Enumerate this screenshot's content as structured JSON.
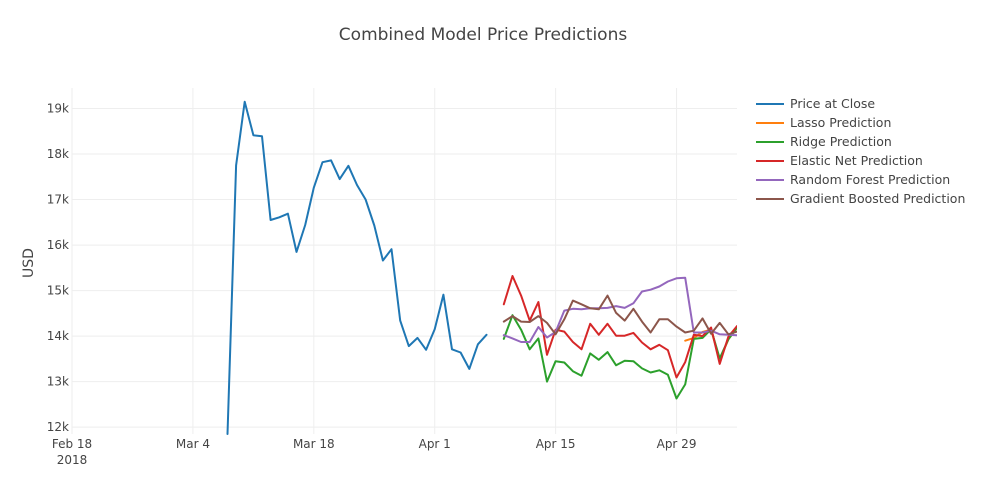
{
  "chart_data": {
    "type": "line",
    "title": "Combined Model Price Predictions",
    "xlabel": "",
    "ylabel": "USD",
    "x_ticks": [
      {
        "date": "2018-02-18",
        "label": "Feb 18",
        "sublabel": "2018"
      },
      {
        "date": "2018-03-04",
        "label": "Mar 4"
      },
      {
        "date": "2018-03-18",
        "label": "Mar 18"
      },
      {
        "date": "2018-04-01",
        "label": "Apr 1"
      },
      {
        "date": "2018-04-15",
        "label": "Apr 15"
      },
      {
        "date": "2018-04-29",
        "label": "Apr 29"
      }
    ],
    "y_ticks": [
      {
        "value": 12000,
        "label": "12k"
      },
      {
        "value": 13000,
        "label": "13k"
      },
      {
        "value": 14000,
        "label": "14k"
      },
      {
        "value": 15000,
        "label": "15k"
      },
      {
        "value": 16000,
        "label": "16k"
      },
      {
        "value": 17000,
        "label": "17k"
      },
      {
        "value": 18000,
        "label": "18k"
      },
      {
        "value": 19000,
        "label": "19k"
      }
    ],
    "xlim": [
      "2018-02-18",
      "2018-05-06"
    ],
    "ylim": [
      11850,
      19450
    ],
    "grid": true,
    "legend_position": "top-right",
    "series": [
      {
        "name": "Price at Close",
        "color": "#1f77b4",
        "x": [
          "2018-03-08",
          "2018-03-09",
          "2018-03-10",
          "2018-03-11",
          "2018-03-12",
          "2018-03-13",
          "2018-03-14",
          "2018-03-15",
          "2018-03-16",
          "2018-03-17",
          "2018-03-18",
          "2018-03-19",
          "2018-03-20",
          "2018-03-21",
          "2018-03-22",
          "2018-03-23",
          "2018-03-24",
          "2018-03-25",
          "2018-03-26",
          "2018-03-27",
          "2018-03-28",
          "2018-03-29",
          "2018-03-30",
          "2018-03-31",
          "2018-04-01",
          "2018-04-02",
          "2018-04-03",
          "2018-04-04",
          "2018-04-05",
          "2018-04-06",
          "2018-04-07",
          "2018-04-08"
        ],
        "values": [
          11850,
          17750,
          19150,
          18410,
          18390,
          16550,
          16610,
          16690,
          15850,
          16440,
          17260,
          17820,
          17860,
          17450,
          17740,
          17320,
          17000,
          16430,
          15660,
          15910,
          14340,
          13780,
          13960,
          13700,
          14150,
          14910,
          13710,
          13640,
          13280,
          13820,
          14030,
          null
        ]
      },
      {
        "name": "Lasso Prediction",
        "color": "#ff7f0e",
        "x": [
          "2018-04-30",
          "2018-05-01",
          "2018-05-02",
          "2018-05-03",
          "2018-05-04",
          "2018-05-05",
          "2018-05-06"
        ],
        "values": [
          13900,
          13960,
          14090,
          14140,
          13480,
          13930,
          14180
        ]
      },
      {
        "name": "Ridge Prediction",
        "color": "#2ca02c",
        "x": [
          "2018-04-09",
          "2018-04-10",
          "2018-04-11",
          "2018-04-12",
          "2018-04-13",
          "2018-04-14",
          "2018-04-15",
          "2018-04-16",
          "2018-04-17",
          "2018-04-18",
          "2018-04-19",
          "2018-04-20",
          "2018-04-21",
          "2018-04-22",
          "2018-04-23",
          "2018-04-24",
          "2018-04-25",
          "2018-04-26",
          "2018-04-27",
          "2018-04-28",
          "2018-04-29",
          "2018-04-30",
          "2018-05-01",
          "2018-05-02",
          "2018-05-03",
          "2018-05-04",
          "2018-05-05",
          "2018-05-06"
        ],
        "values": [
          13940,
          14460,
          14140,
          13710,
          13950,
          13000,
          13450,
          13420,
          13230,
          13130,
          13620,
          13480,
          13650,
          13360,
          13460,
          13450,
          13290,
          13200,
          13250,
          13150,
          12630,
          12940,
          13940,
          13960,
          14150,
          13510,
          13930,
          14190
        ]
      },
      {
        "name": "Elastic Net Prediction",
        "color": "#d62728",
        "x": [
          "2018-04-09",
          "2018-04-10",
          "2018-04-11",
          "2018-04-12",
          "2018-04-13",
          "2018-04-14",
          "2018-04-15",
          "2018-04-16",
          "2018-04-17",
          "2018-04-18",
          "2018-04-19",
          "2018-04-20",
          "2018-04-21",
          "2018-04-22",
          "2018-04-23",
          "2018-04-24",
          "2018-04-25",
          "2018-04-26",
          "2018-04-27",
          "2018-04-28",
          "2018-04-29",
          "2018-04-30",
          "2018-05-01",
          "2018-05-02",
          "2018-05-03",
          "2018-05-04",
          "2018-05-05",
          "2018-05-06"
        ],
        "values": [
          14700,
          15320,
          14890,
          14340,
          14750,
          13590,
          14140,
          14100,
          13870,
          13710,
          14270,
          14030,
          14270,
          14010,
          14010,
          14070,
          13860,
          13710,
          13810,
          13690,
          13090,
          13430,
          14030,
          14000,
          14190,
          13390,
          13990,
          14220
        ]
      },
      {
        "name": "Random Forest Prediction",
        "color": "#9467bd",
        "x": [
          "2018-04-09",
          "2018-04-10",
          "2018-04-11",
          "2018-04-12",
          "2018-04-13",
          "2018-04-14",
          "2018-04-15",
          "2018-04-16",
          "2018-04-17",
          "2018-04-18",
          "2018-04-19",
          "2018-04-20",
          "2018-04-21",
          "2018-04-22",
          "2018-04-23",
          "2018-04-24",
          "2018-04-25",
          "2018-04-26",
          "2018-04-27",
          "2018-04-28",
          "2018-04-29",
          "2018-04-30",
          "2018-05-01",
          "2018-05-02",
          "2018-05-03",
          "2018-05-04",
          "2018-05-05",
          "2018-05-06"
        ],
        "values": [
          14020,
          13950,
          13870,
          13870,
          14200,
          13970,
          14090,
          14560,
          14600,
          14590,
          14610,
          14610,
          14620,
          14660,
          14620,
          14720,
          14980,
          15020,
          15090,
          15200,
          15270,
          15280,
          14080,
          14080,
          14120,
          14040,
          14030,
          14020
        ]
      },
      {
        "name": "Gradient Boosted Prediction",
        "color": "#8c564b",
        "x": [
          "2018-04-09",
          "2018-04-10",
          "2018-04-11",
          "2018-04-12",
          "2018-04-13",
          "2018-04-14",
          "2018-04-15",
          "2018-04-16",
          "2018-04-17",
          "2018-04-18",
          "2018-04-19",
          "2018-04-20",
          "2018-04-21",
          "2018-04-22",
          "2018-04-23",
          "2018-04-24",
          "2018-04-25",
          "2018-04-26",
          "2018-04-27",
          "2018-04-28",
          "2018-04-29",
          "2018-04-30",
          "2018-05-01",
          "2018-05-02",
          "2018-05-03",
          "2018-05-04",
          "2018-05-05",
          "2018-05-06"
        ],
        "values": [
          14320,
          14440,
          14320,
          14310,
          14440,
          14290,
          14040,
          14370,
          14780,
          14700,
          14610,
          14590,
          14890,
          14510,
          14340,
          14600,
          14320,
          14080,
          14370,
          14370,
          14210,
          14080,
          14120,
          14390,
          14050,
          14290,
          14040,
          14100
        ]
      }
    ]
  }
}
